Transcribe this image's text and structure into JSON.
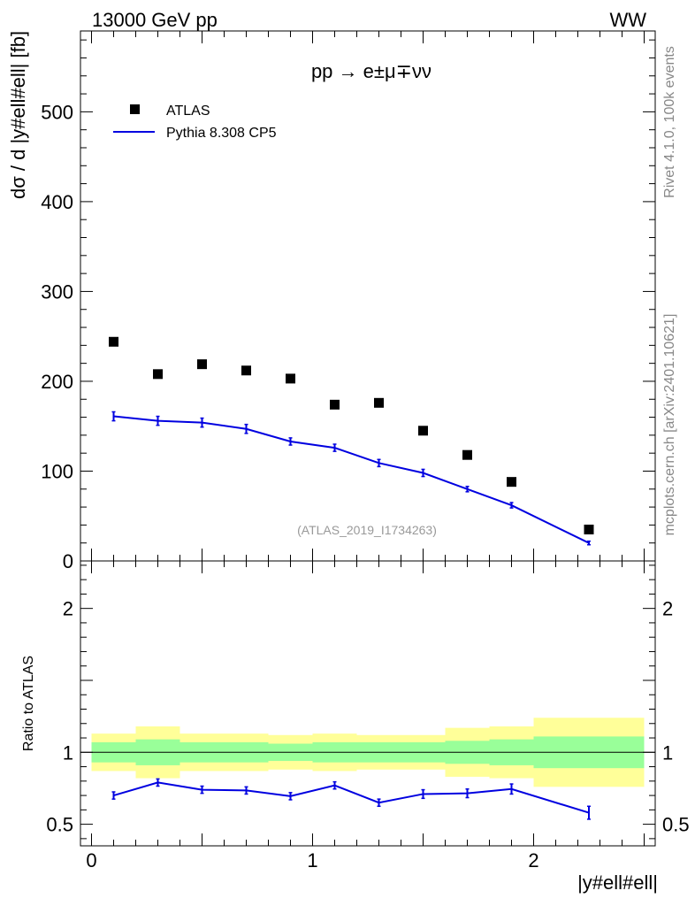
{
  "header": {
    "energy_label": "13000 GeV pp",
    "process_label": "WW"
  },
  "side_labels": {
    "rivet": "Rivet 4.1.0,  100k events",
    "mcplots": "mcplots.cern.ch [arXiv:2401.10621]"
  },
  "main_plot": {
    "process_title": "pp →  e±μ∓νν",
    "ylabel": "dσ / d |y#ell#ell| [fb]",
    "watermark": "(ATLAS_2019_I1734263)",
    "legend": {
      "data_label": "ATLAS",
      "mc_label": "Pythia 8.308 CP5"
    }
  },
  "ratio_plot": {
    "ylabel": "Ratio to ATLAS"
  },
  "xaxis": {
    "label": "|y#ell#ell|"
  },
  "colors": {
    "mc": "#0000e0",
    "band_inner": "#99ff99",
    "band_outer": "#ffff99",
    "data": "#000000"
  },
  "chart_data": [
    {
      "type": "scatter",
      "title": "pp → e±μ∓νν",
      "xlabel": "|y#ell#ell|",
      "ylabel": "dσ / d |y#ell#ell| [fb]",
      "xlim": [
        -0.05,
        2.55
      ],
      "ylim": [
        0,
        590
      ],
      "xticks": [
        "0",
        "1",
        "2"
      ],
      "yticks": [
        "0",
        "100",
        "200",
        "300",
        "400",
        "500"
      ],
      "series": [
        {
          "name": "ATLAS",
          "style": "markers",
          "x": [
            0.1,
            0.3,
            0.5,
            0.7,
            0.9,
            1.1,
            1.3,
            1.5,
            1.7,
            1.9,
            2.25
          ],
          "values": [
            244,
            208,
            219,
            212,
            203,
            174,
            176,
            145,
            118,
            88,
            35
          ]
        },
        {
          "name": "Pythia 8.308 CP5",
          "style": "line",
          "x": [
            0.1,
            0.3,
            0.5,
            0.7,
            0.9,
            1.1,
            1.3,
            1.5,
            1.7,
            1.9,
            2.25
          ],
          "values": [
            161,
            156,
            154,
            147,
            133,
            126,
            109,
            98,
            80,
            62,
            20
          ],
          "errors": [
            5,
            5,
            5,
            5,
            4,
            4,
            4,
            4,
            3,
            3,
            2
          ]
        }
      ]
    },
    {
      "type": "line",
      "title": "Ratio to ATLAS",
      "xlabel": "|y#ell#ell|",
      "ylabel": "Ratio to ATLAS",
      "xlim": [
        -0.05,
        2.55
      ],
      "ylim": [
        0.35,
        2.33
      ],
      "yticks": [
        "0.5",
        "1",
        "2"
      ],
      "reference_line": 1,
      "uncertainty_bands": {
        "bin_edges": [
          0,
          0.2,
          0.4,
          0.6,
          0.8,
          1.0,
          1.2,
          1.4,
          1.6,
          1.8,
          2.0,
          2.5
        ],
        "inner": [
          [
            0.93,
            1.07
          ],
          [
            0.91,
            1.09
          ],
          [
            0.93,
            1.07
          ],
          [
            0.93,
            1.07
          ],
          [
            0.94,
            1.06
          ],
          [
            0.93,
            1.07
          ],
          [
            0.93,
            1.07
          ],
          [
            0.93,
            1.07
          ],
          [
            0.92,
            1.08
          ],
          [
            0.91,
            1.09
          ],
          [
            0.89,
            1.11
          ]
        ],
        "outer": [
          [
            0.87,
            1.13
          ],
          [
            0.82,
            1.18
          ],
          [
            0.87,
            1.13
          ],
          [
            0.87,
            1.13
          ],
          [
            0.88,
            1.12
          ],
          [
            0.87,
            1.13
          ],
          [
            0.88,
            1.12
          ],
          [
            0.88,
            1.12
          ],
          [
            0.83,
            1.17
          ],
          [
            0.82,
            1.18
          ],
          [
            0.76,
            1.24
          ]
        ]
      },
      "series": [
        {
          "name": "Pythia 8.308 CP5 / ATLAS",
          "x": [
            0.1,
            0.3,
            0.5,
            0.7,
            0.9,
            1.1,
            1.3,
            1.5,
            1.7,
            1.9,
            2.25
          ],
          "values": [
            0.7,
            0.79,
            0.74,
            0.735,
            0.695,
            0.77,
            0.65,
            0.71,
            0.715,
            0.745,
            0.58
          ],
          "errors": [
            0.025,
            0.025,
            0.025,
            0.025,
            0.025,
            0.025,
            0.025,
            0.03,
            0.03,
            0.035,
            0.045
          ]
        }
      ]
    }
  ]
}
